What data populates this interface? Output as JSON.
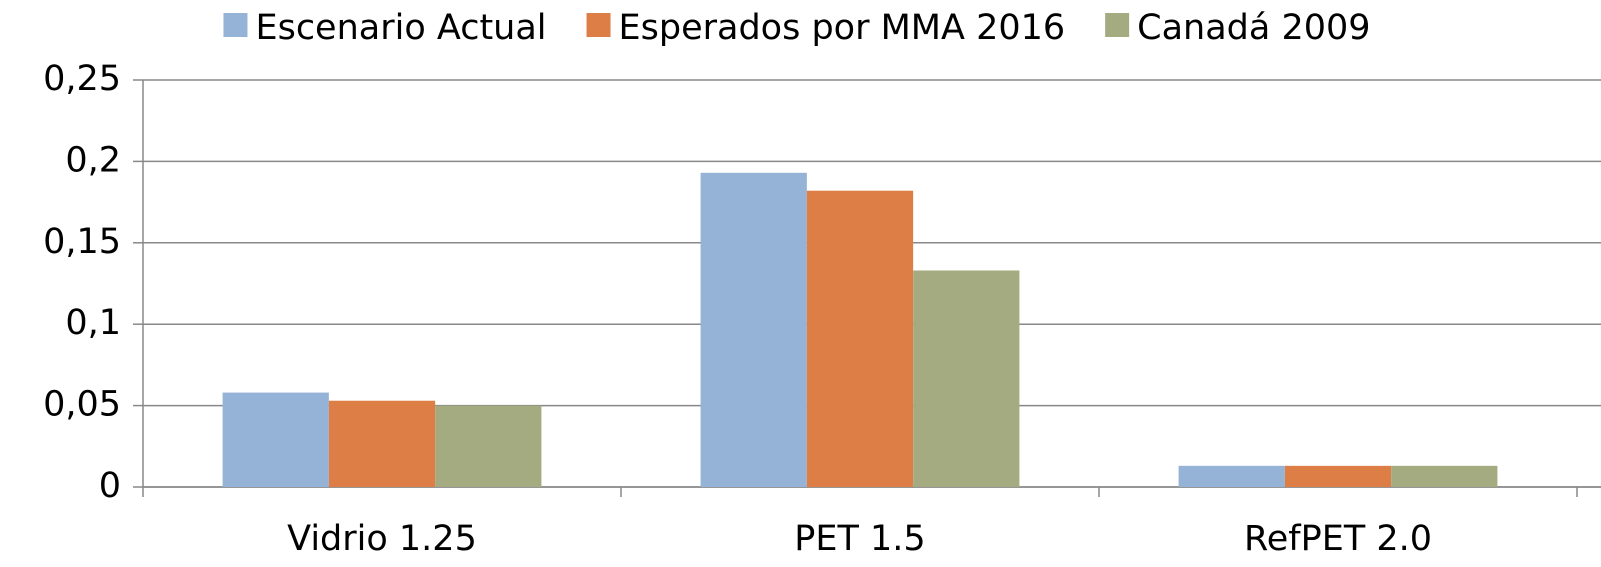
{
  "chart_data": {
    "type": "bar",
    "categories": [
      "Vidrio 1.25",
      "PET 1.5",
      "RefPET 2.0"
    ],
    "series": [
      {
        "name": "Escenario Actual",
        "color": "#95b3d7",
        "values": [
          0.058,
          0.193,
          0.013
        ]
      },
      {
        "name": "Esperados por MMA 2016",
        "color": "#dd7e46",
        "values": [
          0.053,
          0.182,
          0.013
        ]
      },
      {
        "name": "Canadá 2009",
        "color": "#a5ab81",
        "values": [
          0.05,
          0.133,
          0.013
        ]
      }
    ],
    "ylim": [
      0,
      0.25
    ],
    "yticks": [
      0,
      {
        "value": 0.05,
        "label": "0,05"
      },
      {
        "value": 0.1,
        "label": "0,1"
      },
      {
        "value": 0.15,
        "label": "0,15"
      },
      {
        "value": 0.2,
        "label": "0,2"
      },
      {
        "value": 0.25,
        "label": "0,25"
      }
    ],
    "grid": true,
    "legend": "top"
  }
}
